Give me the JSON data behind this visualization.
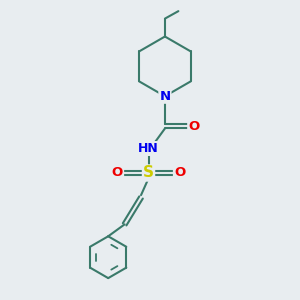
{
  "bg_color": "#e8edf0",
  "bond_color": "#3a7a6a",
  "N_color": "#0000ee",
  "O_color": "#ee0000",
  "S_color": "#cccc00",
  "linewidth": 1.5,
  "figsize": [
    3.0,
    3.0
  ],
  "dpi": 100,
  "xlim": [
    0,
    10
  ],
  "ylim": [
    0,
    10
  ]
}
